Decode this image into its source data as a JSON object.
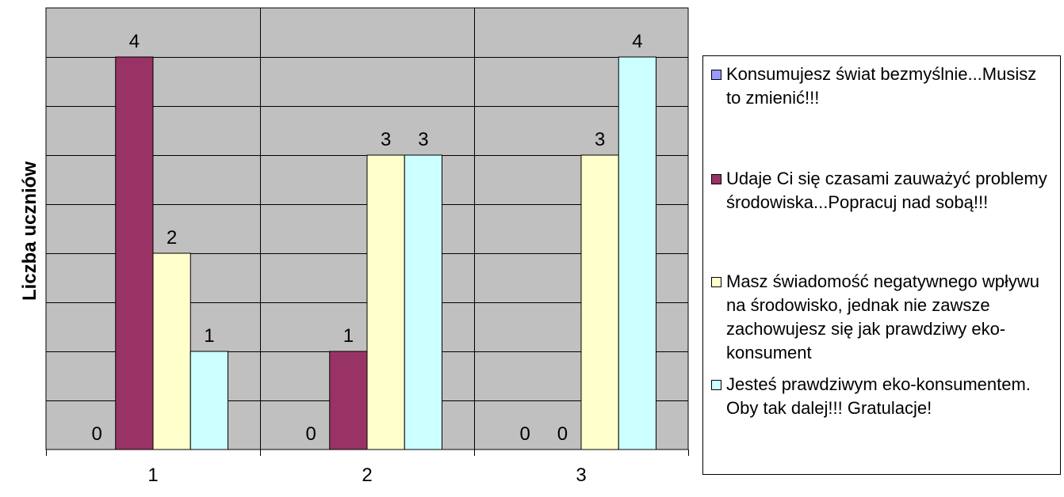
{
  "chart_data": {
    "type": "bar",
    "categories": [
      "1",
      "2",
      "3"
    ],
    "series": [
      {
        "name": "Konsumujesz świat bezmyślnie...Musisz to zmienić!!!",
        "values": [
          0,
          0,
          0
        ],
        "color": "#9999ff"
      },
      {
        "name": "Udaje Ci się czasami zauważyć problemy środowiska...Popracuj nad sobą!!!",
        "values": [
          4,
          1,
          0
        ],
        "color": "#993366"
      },
      {
        "name": "Masz świadomość negatywnego wpływu na środowisko, jednak nie zawsze zachowujesz się jak prawdziwy eko-konsument",
        "values": [
          2,
          3,
          3
        ],
        "color": "#ffffcc"
      },
      {
        "name": "Jesteś prawdziwym eko-konsumentem. Oby tak dalej!!! Gratulacje!",
        "values": [
          1,
          3,
          4
        ],
        "color": "#ccffff"
      }
    ],
    "title": "",
    "xlabel": "",
    "ylabel": "Liczba uczniów",
    "ylim": [
      0,
      4.5
    ],
    "grid": true,
    "legend": "right",
    "plot_background": "#c0c0c0"
  }
}
